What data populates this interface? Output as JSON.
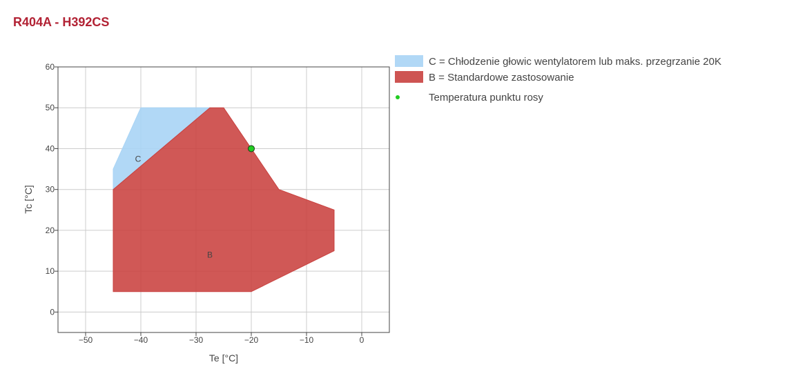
{
  "title": "R404A - H392CS",
  "chart_data": {
    "type": "area",
    "xlabel": "Te [°C]",
    "ylabel": "Tc [°C]",
    "xlim": [
      -55,
      5
    ],
    "ylim": [
      -5,
      60
    ],
    "xticks": [
      -50,
      -40,
      -30,
      -20,
      -10,
      0
    ],
    "xtick_labels": [
      "−50",
      "−40",
      "−30",
      "−20",
      "−10",
      "0"
    ],
    "yticks": [
      0,
      10,
      20,
      30,
      40,
      50,
      60
    ],
    "ytick_labels": [
      "0",
      "10",
      "20",
      "30",
      "40",
      "50",
      "60"
    ],
    "grid": true,
    "legend_position": "right",
    "series": [
      {
        "name": "C = Chłodzenie głowic wentylatorem lub maks. przegrzanie 20K",
        "label": "C",
        "label_pos": [
          -40.5,
          37.5
        ],
        "color": "#a9d4f5",
        "points": [
          [
            -45,
            30
          ],
          [
            -45,
            35
          ],
          [
            -40,
            50
          ],
          [
            -27.5,
            50
          ]
        ]
      },
      {
        "name": "B = Standardowe zastosowanie",
        "label": "B",
        "label_pos": [
          -27.5,
          14
        ],
        "color": "#c9413f",
        "points": [
          [
            -45,
            5
          ],
          [
            -45,
            30
          ],
          [
            -27.5,
            50
          ],
          [
            -25,
            50
          ],
          [
            -20,
            40
          ],
          [
            -15,
            30
          ],
          [
            -5,
            25
          ],
          [
            -5,
            15
          ],
          [
            -20,
            5
          ]
        ]
      },
      {
        "name": "Temperatura punktu rosy",
        "type": "scatter",
        "color": "#22cc22",
        "points": [
          [
            -20,
            40
          ]
        ]
      }
    ]
  }
}
